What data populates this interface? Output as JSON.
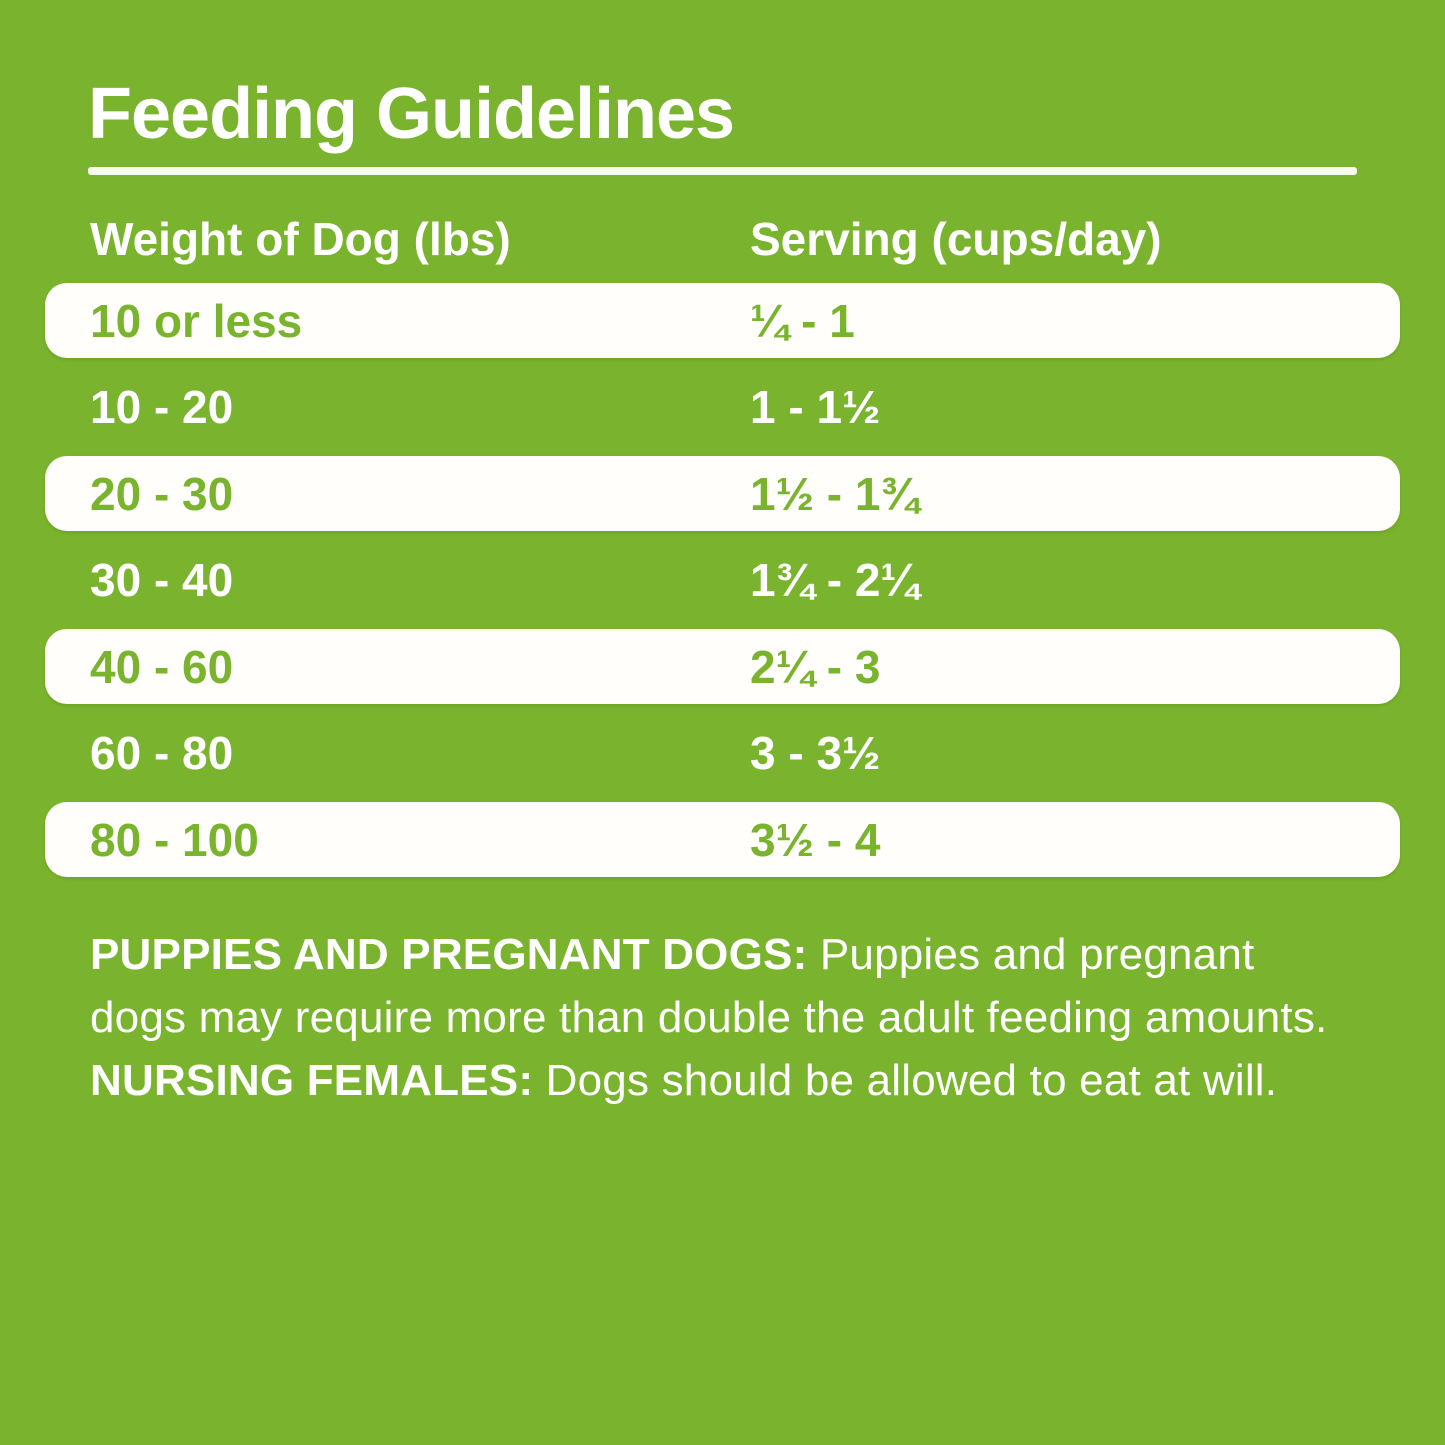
{
  "title": "Feeding Guidelines",
  "table": {
    "columns": [
      "Weight of Dog (lbs)",
      "Serving (cups/day)"
    ],
    "rows": [
      {
        "weight": "10 or less",
        "serving": "¼ - 1",
        "highlight": true
      },
      {
        "weight": "10 - 20",
        "serving": "1 - 1½",
        "highlight": false
      },
      {
        "weight": "20 - 30",
        "serving": "1½ - 1¾",
        "highlight": true
      },
      {
        "weight": "30 - 40",
        "serving": "1¾ - 2¼",
        "highlight": false
      },
      {
        "weight": "40 - 60",
        "serving": "2¼ - 3",
        "highlight": true
      },
      {
        "weight": "60 - 80",
        "serving": "3 - 3½",
        "highlight": false
      },
      {
        "weight": "80 - 100",
        "serving": "3½ - 4",
        "highlight": true
      }
    ]
  },
  "notes": {
    "bold1": "PUPPIES AND PREGNANT DOGS:",
    "text1": " Puppies and pregnant dogs may require more than double the adult feeding amounts. ",
    "bold2": "NURSING FEMALES:",
    "text2": " Dogs should be allowed to eat at will."
  },
  "colors": {
    "green": "#7ab42e",
    "white": "#fffefb",
    "cream": "#f7faef"
  }
}
